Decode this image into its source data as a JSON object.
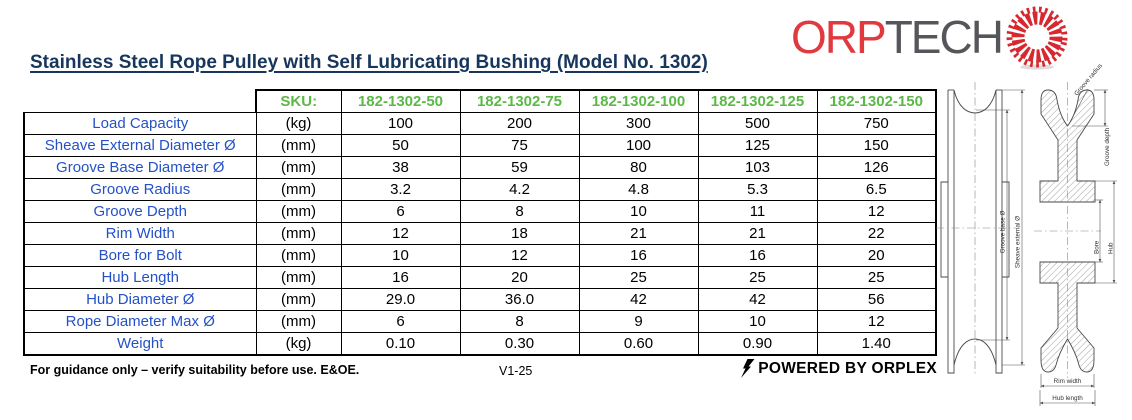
{
  "title": "Stainless Steel Rope Pulley with Self Lubricating Bushing (Model No. 1302)",
  "logo": {
    "brand_red": "ORP",
    "brand_gray": "TECH",
    "red": "#e0393e",
    "gray": "#55565a"
  },
  "table": {
    "sku_label": "SKU:",
    "columns": [
      "182-1302-50",
      "182-1302-75",
      "182-1302-100",
      "182-1302-125",
      "182-1302-150"
    ],
    "rows": [
      {
        "label": "Load Capacity",
        "unit": "(kg)",
        "values": [
          "100",
          "200",
          "300",
          "500",
          "750"
        ]
      },
      {
        "label": "Sheave External Diameter Ø",
        "unit": "(mm)",
        "values": [
          "50",
          "75",
          "100",
          "125",
          "150"
        ]
      },
      {
        "label": "Groove Base Diameter Ø",
        "unit": "(mm)",
        "values": [
          "38",
          "59",
          "80",
          "103",
          "126"
        ]
      },
      {
        "label": "Groove Radius",
        "unit": "(mm)",
        "values": [
          "3.2",
          "4.2",
          "4.8",
          "5.3",
          "6.5"
        ]
      },
      {
        "label": "Groove Depth",
        "unit": "(mm)",
        "values": [
          "6",
          "8",
          "10",
          "11",
          "12"
        ]
      },
      {
        "label": "Rim Width",
        "unit": "(mm)",
        "values": [
          "12",
          "18",
          "21",
          "21",
          "22"
        ]
      },
      {
        "label": "Bore for Bolt",
        "unit": "(mm)",
        "values": [
          "10",
          "12",
          "16",
          "16",
          "20"
        ]
      },
      {
        "label": "Hub Length",
        "unit": "(mm)",
        "values": [
          "16",
          "20",
          "25",
          "25",
          "25"
        ]
      },
      {
        "label": "Hub Diameter Ø",
        "unit": "(mm)",
        "values": [
          "29.0",
          "36.0",
          "42",
          "42",
          "56"
        ]
      },
      {
        "label": "Rope Diameter Max Ø",
        "unit": "(mm)",
        "values": [
          "6",
          "8",
          "9",
          "10",
          "12"
        ]
      },
      {
        "label": "Weight",
        "unit": "(kg)",
        "values": [
          "0.10",
          "0.30",
          "0.60",
          "0.90",
          "1.40"
        ]
      }
    ],
    "label_color": "#2451c8",
    "sku_color": "#5bb847"
  },
  "diagram": {
    "labels": {
      "groove_radius": "Groove radius",
      "groove_depth": "Groove depth",
      "groove_base": "Groove base Ø",
      "sheave_external": "Sheave external Ø",
      "bore": "Bore",
      "hub": "Hub",
      "rim_width": "Rim width",
      "hub_length": "Hub length"
    }
  },
  "footer": {
    "disclaimer": "For guidance only – verify suitability before use. E&OE.",
    "version": "V1-25",
    "powered_by": "POWERED BY ORPLEX"
  },
  "colors": {
    "title_blue": "#17365d"
  }
}
